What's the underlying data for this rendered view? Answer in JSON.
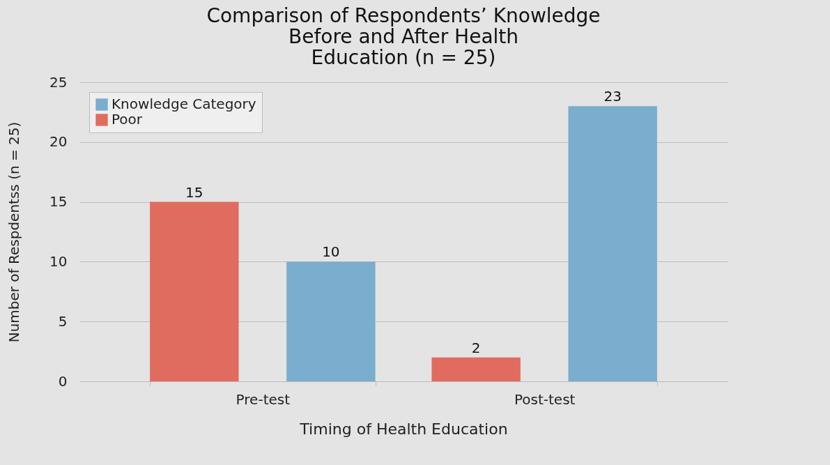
{
  "chart_data": {
    "type": "bar",
    "title": "Comparison of Respondents’ Knowledge\nBefore and After Health\nEducation (n = 25)",
    "xlabel": "Timing of Health Education",
    "ylabel": "Number of Respdentss (n = 25)",
    "categories": [
      "Pre-test",
      "Post-test"
    ],
    "series": [
      {
        "name": "Poor",
        "color": "#e06c5f",
        "values": [
          15,
          2
        ]
      },
      {
        "name": "Knowledge Category",
        "color": "#7aadce",
        "values": [
          10,
          23
        ]
      }
    ],
    "ylim": [
      0,
      25
    ],
    "yticks": [
      0,
      5,
      10,
      15,
      20,
      25
    ],
    "data_labels": true,
    "grid": "y",
    "legend": "top left"
  }
}
